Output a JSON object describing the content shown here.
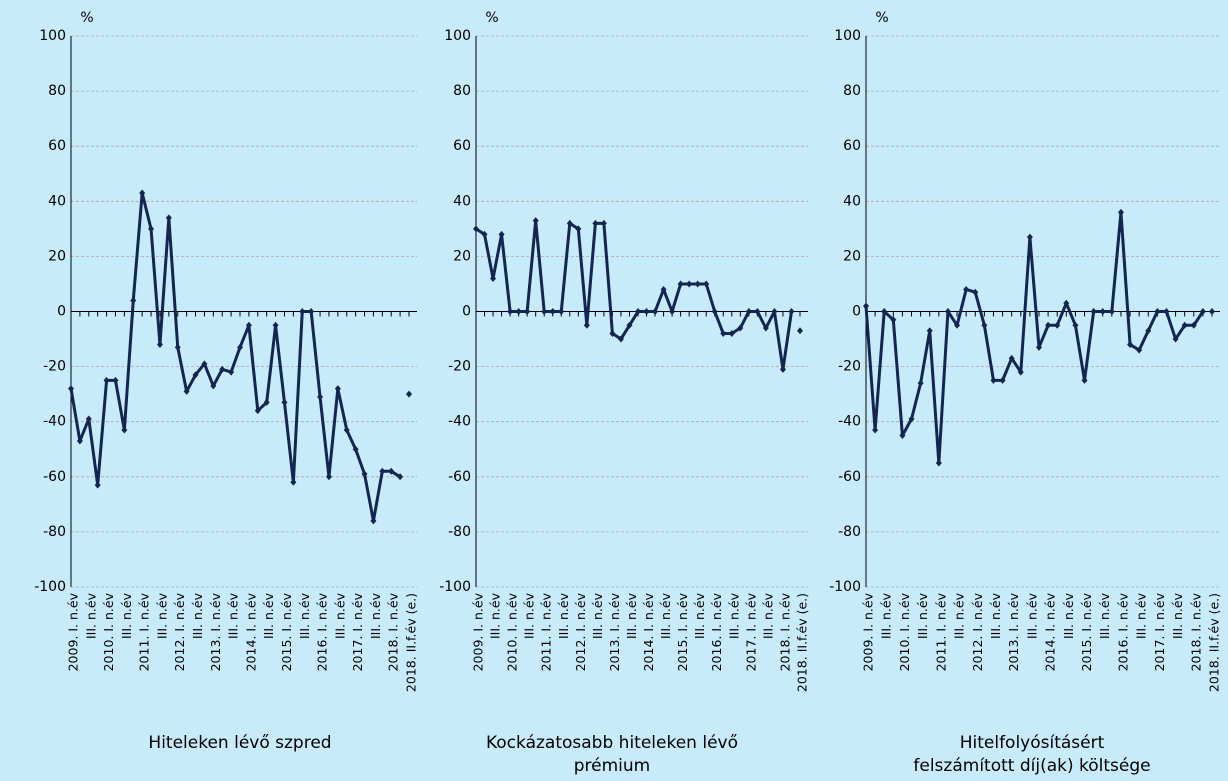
{
  "chart_data": [
    {
      "type": "line",
      "title": "Hiteleken lévő szpred",
      "y_label": "%",
      "categories": [
        "2009. I. n.év",
        null,
        "III. n.év",
        null,
        "2010. I. n.év",
        null,
        "III. n.év",
        null,
        "2011. I. n.év",
        null,
        "III. n.év",
        null,
        "2012. I. n.év",
        null,
        "III. n.év",
        null,
        "2013. I. n.év",
        null,
        "III. n.év",
        null,
        "2014. I. n.év",
        null,
        "III. n.év",
        null,
        "2015. I. n.év",
        null,
        "III. n.év",
        null,
        "2016. I. n.év",
        null,
        "III. n.év",
        null,
        "2017. I. n.év",
        null,
        "III. n.év",
        null,
        "2018. I. n.év",
        null,
        "2018. II.f.év (e.)"
      ],
      "series": [
        {
          "color": "#14264f",
          "values": [
            -28,
            -47,
            -39,
            -63,
            -25,
            -25,
            -43,
            4,
            43,
            30,
            -12,
            34,
            -13,
            -29,
            -23,
            -19,
            -27,
            -21,
            -22,
            -13,
            -5,
            -36,
            -33,
            -5,
            -33,
            -62,
            0,
            0,
            -31,
            -60,
            -28,
            -43,
            -50,
            -59,
            -76,
            -58,
            -58,
            -60,
            null
          ]
        },
        {
          "color": "#14264f",
          "values": [
            null,
            null,
            null,
            null,
            null,
            null,
            null,
            null,
            null,
            null,
            null,
            null,
            null,
            null,
            null,
            null,
            null,
            null,
            null,
            null,
            null,
            null,
            null,
            null,
            null,
            null,
            null,
            null,
            null,
            null,
            null,
            null,
            null,
            null,
            null,
            null,
            null,
            null,
            -30
          ]
        }
      ],
      "ylim": [
        -100,
        100
      ],
      "yticks": [
        -100,
        -80,
        -60,
        -40,
        -20,
        0,
        20,
        40,
        60,
        80,
        100
      ],
      "grid": true
    },
    {
      "type": "line",
      "title": "Kockázatosabb hiteleken lévő prémium",
      "y_label": "%",
      "categories": [
        "2009. I. n.év",
        null,
        "III. n.év",
        null,
        "2010. I. n.év",
        null,
        "III. n.év",
        null,
        "2011. I. n.év",
        null,
        "III. n.év",
        null,
        "2012. I. n.év",
        null,
        "III. n.év",
        null,
        "2013. I. n.év",
        null,
        "III. n.év",
        null,
        "2014. I. n.év",
        null,
        "III. n.év",
        null,
        "2015. I. n.év",
        null,
        "III. n.év",
        null,
        "2016. I. n.év",
        null,
        "III. n.év",
        null,
        "2017. I. n.év",
        null,
        "III. n.év",
        null,
        "2018. I. n.év",
        null,
        "2018. II.f.év (e.)"
      ],
      "series": [
        {
          "color": "#14264f",
          "values": [
            30,
            28,
            12,
            28,
            0,
            0,
            0,
            33,
            0,
            0,
            0,
            32,
            30,
            -5,
            32,
            32,
            -8,
            -10,
            -5,
            0,
            0,
            0,
            8,
            0,
            10,
            10,
            10,
            10,
            0,
            -8,
            -8,
            -6,
            0,
            0,
            -6,
            0,
            -21,
            0,
            null
          ]
        },
        {
          "color": "#14264f",
          "values": [
            null,
            null,
            null,
            null,
            null,
            null,
            null,
            null,
            null,
            null,
            null,
            null,
            null,
            null,
            null,
            null,
            null,
            null,
            null,
            null,
            null,
            null,
            null,
            null,
            null,
            null,
            null,
            null,
            null,
            null,
            null,
            null,
            null,
            null,
            null,
            null,
            null,
            null,
            -7
          ]
        }
      ],
      "ylim": [
        -100,
        100
      ],
      "yticks": [
        -100,
        -80,
        -60,
        -40,
        -20,
        0,
        20,
        40,
        60,
        80,
        100
      ],
      "grid": true
    },
    {
      "type": "line",
      "title": "Hitelfolyósításért felszámított díj(ak) költsége",
      "y_label": "%",
      "categories": [
        "2009. I. n.év",
        null,
        "III. n.év",
        null,
        "2010. I. n.év",
        null,
        "III. n.év",
        null,
        "2011. I. n.év",
        null,
        "III. n.év",
        null,
        "2012. I. n.év",
        null,
        "III. n.év",
        null,
        "2013. I. n.év",
        null,
        "III. n.év",
        null,
        "2014. I. n.év",
        null,
        "III. n.év",
        null,
        "2015. I. n.év",
        null,
        "III. n.év",
        null,
        "2016. I. n.év",
        null,
        "III. n.év",
        null,
        "2017. I. n.év",
        null,
        "III. n.év",
        null,
        "2018. I. n.év",
        null,
        "2018. II.f.év (e.)"
      ],
      "series": [
        {
          "color": "#14264f",
          "values": [
            2,
            -43,
            0,
            -3,
            -45,
            -39,
            -26,
            -7,
            -55,
            0,
            -5,
            8,
            7,
            -5,
            -25,
            -25,
            -17,
            -22,
            27,
            -13,
            -5,
            -5,
            3,
            -5,
            -25,
            0,
            0,
            0,
            36,
            -12,
            -14,
            -7,
            0,
            0,
            -10,
            -5,
            -5,
            0,
            null
          ]
        },
        {
          "color": "#14264f",
          "values": [
            null,
            null,
            null,
            null,
            null,
            null,
            null,
            null,
            null,
            null,
            null,
            null,
            null,
            null,
            null,
            null,
            null,
            null,
            null,
            null,
            null,
            null,
            null,
            null,
            null,
            null,
            null,
            null,
            null,
            null,
            null,
            null,
            null,
            null,
            null,
            null,
            null,
            null,
            0
          ]
        }
      ],
      "ylim": [
        -100,
        100
      ],
      "yticks": [
        -100,
        -80,
        -60,
        -40,
        -20,
        0,
        20,
        40,
        60,
        80,
        100
      ],
      "grid": true
    }
  ]
}
